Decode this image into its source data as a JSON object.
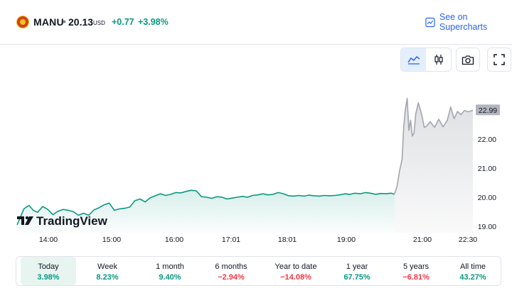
{
  "header": {
    "symbol": "MANU",
    "separator": "•",
    "price": "20.13",
    "currency": "USD",
    "change": "+0.77",
    "change_percent": "+3.98%",
    "supercharts_label": "See on Supercharts",
    "up_color": "#089981",
    "down_color": "#f23645",
    "brand_color": "#2962ff"
  },
  "toolbar": {
    "icons": [
      "area-chart-icon",
      "candles-icon",
      "camera-icon",
      "fullscreen-icon"
    ],
    "active": "area-chart-icon"
  },
  "watermark": "TradingView",
  "chart_data": {
    "type": "area",
    "x_ticks": [
      "14:00",
      "15:00",
      "16:00",
      "17:01",
      "18:01",
      "19:00",
      "21:00",
      "22:30"
    ],
    "y_ticks": [
      "19.00",
      "20.00",
      "21.00",
      "22.00"
    ],
    "last_value_label": "22.99",
    "ylim": [
      19.0,
      23.6
    ],
    "regular_session_color": "#089981",
    "extended_session_color": "#a3a6af",
    "series": [
      {
        "session": "regular",
        "x": [
          "13:36",
          "13:44",
          "13:50",
          "13:55",
          "14:00",
          "14:06",
          "14:12",
          "14:18",
          "14:24",
          "14:30",
          "14:36",
          "14:42",
          "14:48",
          "14:54",
          "15:00",
          "15:06",
          "15:12",
          "15:18",
          "15:24",
          "15:30",
          "15:36",
          "15:42",
          "15:48",
          "15:54",
          "16:00",
          "16:06",
          "16:12",
          "16:18",
          "16:24",
          "16:30",
          "16:36",
          "16:42",
          "16:48",
          "16:54",
          "17:00",
          "17:06",
          "17:12",
          "17:18",
          "17:24",
          "17:30",
          "17:36",
          "17:42",
          "17:48",
          "17:54",
          "18:00",
          "18:06",
          "18:12",
          "18:18",
          "18:24",
          "18:30",
          "18:36",
          "18:42",
          "18:48",
          "18:54",
          "19:00",
          "19:06",
          "19:12",
          "19:18",
          "19:24",
          "19:30",
          "19:36",
          "19:42",
          "19:48",
          "19:54",
          "20:00",
          "20:06",
          "20:12",
          "20:18",
          "20:24",
          "20:30",
          "20:36",
          "20:42",
          "20:48",
          "20:54",
          "20:58"
        ],
        "values": [
          19.05,
          19.6,
          19.72,
          19.55,
          19.48,
          19.68,
          19.58,
          19.4,
          19.52,
          19.58,
          19.55,
          19.5,
          19.38,
          19.45,
          19.38,
          19.56,
          19.64,
          19.74,
          19.8,
          19.55,
          19.6,
          19.62,
          19.66,
          19.88,
          19.94,
          19.84,
          19.98,
          20.05,
          20.12,
          20.06,
          20.1,
          20.16,
          20.15,
          20.2,
          20.24,
          20.22,
          20.02,
          20.0,
          19.96,
          20.02,
          20.0,
          19.94,
          19.97,
          20.0,
          20.03,
          20.0,
          20.06,
          20.08,
          20.12,
          20.08,
          20.1,
          20.16,
          20.12,
          20.05,
          20.04,
          20.06,
          20.04,
          20.07,
          20.05,
          20.04,
          20.06,
          20.05,
          20.06,
          20.08,
          20.12,
          20.1,
          20.14,
          20.12,
          20.16,
          20.14,
          20.1,
          20.13,
          20.12,
          20.14,
          20.1
        ]
      },
      {
        "session": "post-market",
        "x": [
          "20:58",
          "21:01",
          "21:04",
          "21:07",
          "21:09",
          "21:11",
          "21:13",
          "21:15",
          "21:17",
          "21:19",
          "21:21",
          "21:23",
          "21:26",
          "21:30",
          "21:33",
          "21:36",
          "21:40",
          "21:45",
          "21:50",
          "21:55",
          "22:00",
          "22:04",
          "22:08",
          "22:12",
          "22:16",
          "22:20",
          "22:25",
          "22:30"
        ],
        "values": [
          20.1,
          20.35,
          20.9,
          21.3,
          22.45,
          23.05,
          23.4,
          22.3,
          22.65,
          22.1,
          22.2,
          22.85,
          23.25,
          22.85,
          22.4,
          22.45,
          22.6,
          22.4,
          22.68,
          22.42,
          22.65,
          23.1,
          22.7,
          22.95,
          22.84,
          22.98,
          22.94,
          22.99
        ]
      }
    ],
    "time_axis": {
      "start": "13:36",
      "end": "22:30"
    }
  },
  "periods": [
    {
      "label": "Today",
      "value": "3.98%",
      "direction": "up",
      "selected": true
    },
    {
      "label": "Week",
      "value": "8.23%",
      "direction": "up",
      "selected": false
    },
    {
      "label": "1 month",
      "value": "9.40%",
      "direction": "up",
      "selected": false
    },
    {
      "label": "6 months",
      "value": "−2.94%",
      "direction": "down",
      "selected": false
    },
    {
      "label": "Year to date",
      "value": "−14.08%",
      "direction": "down",
      "selected": false
    },
    {
      "label": "1 year",
      "value": "67.75%",
      "direction": "up",
      "selected": false
    },
    {
      "label": "5 years",
      "value": "−6.81%",
      "direction": "down",
      "selected": false
    },
    {
      "label": "All time",
      "value": "43.27%",
      "direction": "up",
      "selected": false
    }
  ]
}
